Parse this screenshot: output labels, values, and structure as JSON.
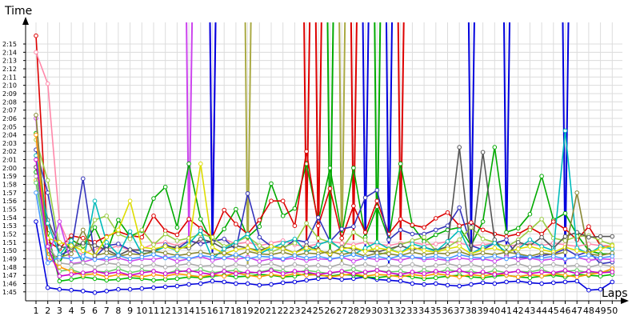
{
  "chart_data": {
    "type": "line",
    "title": "",
    "xlabel": "Laps",
    "ylabel": "Time",
    "grid": true,
    "legend": "none",
    "x": [
      1,
      2,
      3,
      4,
      5,
      6,
      7,
      8,
      9,
      10,
      11,
      12,
      13,
      14,
      15,
      16,
      17,
      18,
      19,
      20,
      21,
      22,
      23,
      24,
      25,
      26,
      27,
      28,
      29,
      30,
      31,
      32,
      33,
      34,
      35,
      36,
      37,
      38,
      39,
      40,
      41,
      42,
      43,
      44,
      45,
      46,
      47,
      48,
      49,
      50
    ],
    "y_ticks": [
      "1:45",
      "1:46",
      "1:47",
      "1:48",
      "1:49",
      "1:50",
      "1:51",
      "1:52",
      "1:53",
      "1:54",
      "1:55",
      "1:56",
      "1:57",
      "1:58",
      "1:59",
      "2:00",
      "2:01",
      "2:02",
      "2:03",
      "2:04",
      "2:05",
      "2:06",
      "2:07",
      "2:08",
      "2:09",
      "2:10",
      "2:11",
      "2:12",
      "2:13",
      "2:14",
      "2:15"
    ],
    "ylim_seconds": [
      104,
      137
    ],
    "series": [
      {
        "color": "#0000dd",
        "values": [
          113.5,
          105.5,
          105.3,
          105.2,
          105.1,
          104.9,
          105.1,
          105.3,
          105.3,
          105.4,
          105.5,
          105.6,
          105.7,
          105.9,
          106.0,
          106.3,
          106.2,
          106.0,
          106.0,
          105.8,
          105.9,
          106.1,
          106.2,
          106.4,
          106.6,
          106.7,
          106.5,
          106.6,
          106.8,
          106.5,
          106.4,
          106.3,
          106.0,
          105.9,
          106.0,
          105.8,
          105.7,
          105.9,
          106.1,
          106.0,
          106.2,
          106.3,
          106.1,
          106.0,
          106.1,
          106.2,
          106.3,
          105.2,
          105.3,
          106.2
        ]
      },
      {
        "color": "#00bb00",
        "values": [
          124.2,
          112.1,
          106.3,
          106.5,
          106.8,
          106.6,
          106.4,
          106.5,
          106.7,
          106.6,
          106.4,
          106.5,
          106.6,
          106.8,
          106.7,
          106.9,
          107.0,
          106.8,
          106.9,
          107.1,
          107.0,
          106.8,
          106.9,
          107.2,
          107.0,
          106.9,
          107.1,
          107.0,
          106.8,
          106.7,
          106.9,
          107.0,
          106.8,
          106.6,
          106.7,
          106.9,
          107.0,
          106.8,
          106.7,
          106.9,
          107.0,
          106.8,
          106.7,
          106.9,
          107.0,
          106.8,
          107.1,
          107.0,
          106.9,
          107.1
        ]
      },
      {
        "color": "#00aa00",
        "values": [
          119.5,
          110.5,
          108.5,
          111.3,
          110.5,
          112.8,
          109.7,
          113.7,
          111.7,
          112.4,
          116.3,
          117.7,
          112.8,
          120.5,
          113.8,
          110.9,
          112.6,
          115.0,
          111.6,
          112.9,
          118.1,
          114.2,
          115.1,
          120.5,
          113.5,
          120.0,
          112.0,
          120.0,
          111.6,
          115.3,
          111.4,
          120.5,
          113.0,
          111.1,
          111.9,
          112.5,
          112.8,
          110.6,
          113.5,
          122.5,
          112.2,
          112.7,
          114.4,
          119.0,
          113.7,
          114.5,
          111.9,
          110.0,
          109.6,
          109.6
        ]
      },
      {
        "color": "#dd0000",
        "values": [
          136.0,
          111.1,
          110.2,
          111.8,
          111.5,
          111.0,
          111.7,
          112.3,
          111.8,
          111.6,
          114.2,
          112.4,
          111.9,
          113.8,
          112.7,
          111.6,
          114.9,
          113.2,
          112.0,
          113.7,
          116.0,
          116.0,
          113.0,
          122.0,
          113.0,
          117.5,
          111.5,
          115.4,
          112.2,
          116.0,
          112.0,
          113.8,
          113.1,
          112.8,
          113.9,
          114.6,
          113.0,
          113.4,
          112.5,
          112.0,
          111.7,
          112.0,
          112.8,
          112.0,
          113.5,
          112.6,
          111.3,
          112.9,
          110.6,
          110.5
        ]
      },
      {
        "color": "#ff88aa",
        "values": [
          134.0,
          130.2,
          113.5,
          110.1,
          109.5,
          110.3,
          110.1,
          110.6,
          110.0,
          110.2,
          110.8,
          111.0,
          110.6,
          111.2,
          110.9,
          111.1,
          111.4,
          110.8,
          111.0,
          110.6,
          110.9,
          111.2,
          110.7,
          110.5,
          110.8,
          111.1,
          110.9,
          110.7,
          111.0,
          110.8,
          110.6,
          110.9,
          111.0,
          110.7,
          110.8,
          111.1,
          110.9,
          110.6,
          110.7,
          110.9,
          110.5,
          110.7,
          110.8,
          110.6,
          110.9,
          110.7,
          110.5,
          110.8,
          110.6,
          110.4
        ]
      },
      {
        "color": "#3333bb",
        "values": [
          122.2,
          117.0,
          109.4,
          110.1,
          118.7,
          109.2,
          110.6,
          110.8,
          110.1,
          109.5,
          109.9,
          110.7,
          110.2,
          111.2,
          110.8,
          111.1,
          111.4,
          110.1,
          116.9,
          111.6,
          110.5,
          110.2,
          111.3,
          111.0,
          114.0,
          111.1,
          112.6,
          112.9,
          116.4,
          117.3,
          111.3,
          112.5,
          112.0,
          112.0,
          112.5,
          113.0,
          115.2,
          110.6,
          110.1,
          110.9,
          111.3,
          109.2,
          109.1,
          109.4,
          109.6,
          110.2,
          109.4,
          109.9,
          108.4,
          108.6
        ]
      },
      {
        "color": "#99cc44",
        "values": [
          123.4,
          118.5,
          110.4,
          110.3,
          110.6,
          113.7,
          114.2,
          112.0,
          111.4,
          112.5,
          110.7,
          112.0,
          111.2,
          111.5,
          112.0,
          111.6,
          110.5,
          111.0,
          111.7,
          110.6,
          109.8,
          110.4,
          110.9,
          113.3,
          111.5,
          111.0,
          110.2,
          112.2,
          111.3,
          109.4,
          109.9,
          110.7,
          111.2,
          111.6,
          110.0,
          110.4,
          111.3,
          112.8,
          111.4,
          111.0,
          110.4,
          111.3,
          112.5,
          113.8,
          111.5,
          111.2,
          111.7,
          111.8,
          111.2,
          110.7
        ]
      },
      {
        "color": "#555555",
        "values": [
          120.1,
          113.7,
          110.4,
          110.4,
          110.9,
          110.6,
          110.1,
          109.4,
          110.1,
          110.0,
          109.9,
          110.5,
          110.4,
          110.3,
          111.4,
          111.0,
          110.2,
          110.6,
          110.3,
          110.0,
          110.5,
          110.3,
          109.7,
          110.6,
          110.1,
          109.5,
          110.4,
          110.2,
          110.0,
          109.8,
          110.2,
          110.6,
          110.1,
          110.4,
          110.0,
          110.5,
          122.5,
          109.4,
          121.9,
          111.3,
          109.4,
          111.0,
          110.6,
          111.6,
          110.3,
          111.7,
          112.2,
          111.6,
          111.7,
          111.7
        ]
      },
      {
        "color": "#00bbbb",
        "values": [
          121.5,
          113.3,
          109.5,
          111.2,
          108.5,
          116.0,
          111.0,
          109.5,
          112.3,
          109.6,
          109.8,
          110.5,
          110.0,
          110.8,
          112.4,
          109.0,
          110.2,
          111.0,
          112.0,
          109.6,
          110.3,
          110.9,
          111.4,
          109.8,
          110.7,
          111.2,
          110.1,
          109.5,
          110.3,
          111.0,
          110.2,
          109.7,
          110.8,
          110.4,
          109.9,
          111.1,
          112.5,
          109.6,
          110.4,
          110.9,
          109.8,
          110.2,
          111.3,
          110.5,
          110.0,
          124.5,
          110.3,
          109.6,
          110.5,
          110.2
        ]
      },
      {
        "color": "#dddd00",
        "values": [
          118.5,
          111.5,
          111.0,
          110.6,
          110.0,
          109.4,
          111.6,
          112.5,
          116.0,
          110.4,
          110.2,
          110.5,
          110.1,
          110.6,
          120.5,
          110.4,
          109.6,
          110.1,
          110.3,
          109.8,
          110.5,
          110.2,
          109.7,
          110.3,
          110.0,
          109.6,
          110.2,
          110.4,
          109.9,
          110.3,
          110.1,
          109.7,
          110.4,
          110.0,
          109.8,
          110.2,
          110.5,
          109.6,
          110.1,
          110.3,
          109.8,
          110.2,
          110.5,
          110.1,
          109.8,
          110.4,
          110.0,
          109.7,
          110.2,
          110.6
        ]
      },
      {
        "color": "#cc44ee",
        "values": [
          126.0,
          109.0,
          113.5,
          108.4,
          108.6,
          109.0,
          108.8,
          109.1,
          108.7,
          109.0,
          108.9,
          109.2,
          108.7,
          109.0,
          109.3,
          108.8,
          109.1,
          108.9,
          109.2,
          108.7,
          109.0,
          108.9,
          109.1,
          108.8,
          109.0,
          108.9,
          109.2,
          108.7,
          109.1,
          108.9,
          109.0,
          108.8,
          109.2,
          108.9,
          109.0,
          108.8,
          109.1,
          108.9,
          109.0,
          108.7,
          109.2,
          108.9,
          109.1,
          108.8,
          109.0,
          108.9,
          109.2,
          108.8,
          109.0,
          108.9
        ]
      },
      {
        "color": "#888833",
        "values": [
          126.4,
          109.5,
          109.2,
          109.6,
          112.5,
          109.4,
          109.7,
          109.3,
          109.6,
          109.5,
          109.9,
          109.7,
          109.4,
          109.6,
          109.8,
          109.5,
          109.7,
          109.3,
          109.9,
          109.6,
          109.5,
          109.8,
          109.4,
          109.7,
          109.6,
          109.9,
          109.5,
          109.8,
          109.3,
          109.7,
          109.6,
          109.4,
          109.8,
          109.5,
          109.7,
          109.6,
          109.9,
          109.4,
          109.7,
          109.5,
          109.8,
          109.6,
          109.3,
          109.7,
          109.5,
          109.8,
          117.0,
          109.6,
          109.4,
          109.7
        ]
      },
      {
        "color": "#aaaaaa",
        "values": [
          119.0,
          110.7,
          108.5,
          108.3,
          108.5,
          108.0,
          108.5,
          108.3,
          108.2,
          108.1,
          108.3,
          108.0,
          108.2,
          108.4,
          108.1,
          108.2,
          108.0,
          108.3,
          108.1,
          108.2,
          108.4,
          108.0,
          108.3,
          108.1,
          108.2,
          108.0,
          108.4,
          108.1,
          108.3,
          108.0,
          108.2,
          108.1,
          108.3,
          108.0,
          108.2,
          108.4,
          108.1,
          108.3,
          108.0,
          108.2,
          108.1,
          108.4,
          108.0,
          108.2,
          108.3,
          108.1,
          108.2,
          108.0,
          108.3,
          108.1
        ]
      },
      {
        "color": "#66cc66",
        "values": [
          118.2,
          110.0,
          107.5,
          107.7,
          107.2,
          107.5,
          107.4,
          107.8,
          107.3,
          107.6,
          107.5,
          107.2,
          107.6,
          107.4,
          107.7,
          107.3,
          107.5,
          107.6,
          107.2,
          107.4,
          107.7,
          107.5,
          107.3,
          107.6,
          107.4,
          107.2,
          107.5,
          107.7,
          107.3,
          107.6,
          107.4,
          107.5,
          107.2,
          107.6,
          107.3,
          107.7,
          107.4,
          107.5,
          107.2,
          107.6,
          107.3,
          107.5,
          107.4,
          107.7,
          107.2,
          107.5,
          107.6,
          107.3,
          107.4,
          107.5
        ]
      },
      {
        "color": "#ff9900",
        "values": [
          124.0,
          109.2,
          108.0,
          107.5,
          107.0,
          107.2,
          106.8,
          107.1,
          107.0,
          106.8,
          107.1,
          106.9,
          107.2,
          107.0,
          106.8,
          107.1,
          106.9,
          107.3,
          107.0,
          106.8,
          107.1,
          106.9,
          107.2,
          107.0,
          107.1,
          106.8,
          107.0,
          107.2,
          106.9,
          107.1,
          107.0,
          106.8,
          107.1,
          106.9,
          107.2,
          107.0,
          106.8,
          107.1,
          106.9,
          107.2,
          107.0,
          106.8,
          107.1,
          106.9,
          107.2,
          107.0,
          106.8,
          107.1,
          107.3,
          107.8
        ]
      },
      {
        "color": "#4499ff",
        "values": [
          117.0,
          108.5,
          109.2,
          109.0,
          109.3,
          108.9,
          109.1,
          109.4,
          109.0,
          109.2,
          109.5,
          109.1,
          109.3,
          109.0,
          109.4,
          109.2,
          109.1,
          109.5,
          109.0,
          109.3,
          109.2,
          109.0,
          109.4,
          109.1,
          109.3,
          109.0,
          109.2,
          109.5,
          109.1,
          109.3,
          109.0,
          109.4,
          109.2,
          109.1,
          109.3,
          109.0,
          109.5,
          109.2,
          109.1,
          109.3,
          109.0,
          109.4,
          109.2,
          109.1,
          109.3,
          109.0,
          109.2,
          109.4,
          109.1,
          109.3
        ]
      },
      {
        "color": "#cc00cc",
        "values": [
          121.0,
          110.5,
          106.9,
          107.1,
          107.3,
          107.5,
          107.2,
          107.4,
          107.0,
          107.3,
          107.5,
          107.2,
          107.4,
          107.6,
          107.3,
          107.1,
          107.5,
          107.2,
          107.4,
          107.3,
          107.6,
          107.2,
          107.5,
          107.4,
          107.1,
          107.3,
          107.5,
          107.2,
          107.4,
          107.6,
          107.3,
          107.1,
          107.4,
          107.2,
          107.5,
          107.3,
          107.6,
          107.2,
          107.4,
          107.1,
          107.3,
          107.5,
          107.2,
          107.4,
          107.3,
          107.6,
          107.2,
          107.5,
          107.3,
          107.4
        ]
      }
    ],
    "spikes": [
      {
        "lap": 14,
        "color": "#cc44ee"
      },
      {
        "lap": 16,
        "color": "#cc44ee"
      },
      {
        "lap": 16,
        "color": "#0000dd"
      },
      {
        "lap": 19,
        "color": "#aaaa44"
      },
      {
        "lap": 24,
        "color": "#dd0000"
      },
      {
        "lap": 25,
        "color": "#dd0000"
      },
      {
        "lap": 26,
        "color": "#00aa00"
      },
      {
        "lap": 27,
        "color": "#aaaa44"
      },
      {
        "lap": 28,
        "color": "#dd0000"
      },
      {
        "lap": 29,
        "color": "#0000dd"
      },
      {
        "lap": 30,
        "color": "#00aa00"
      },
      {
        "lap": 31,
        "color": "#0000dd"
      },
      {
        "lap": 32,
        "color": "#dd0000"
      },
      {
        "lap": 38,
        "color": "#0000dd"
      },
      {
        "lap": 41,
        "color": "#0000dd"
      },
      {
        "lap": 46,
        "color": "#0000dd"
      }
    ]
  }
}
